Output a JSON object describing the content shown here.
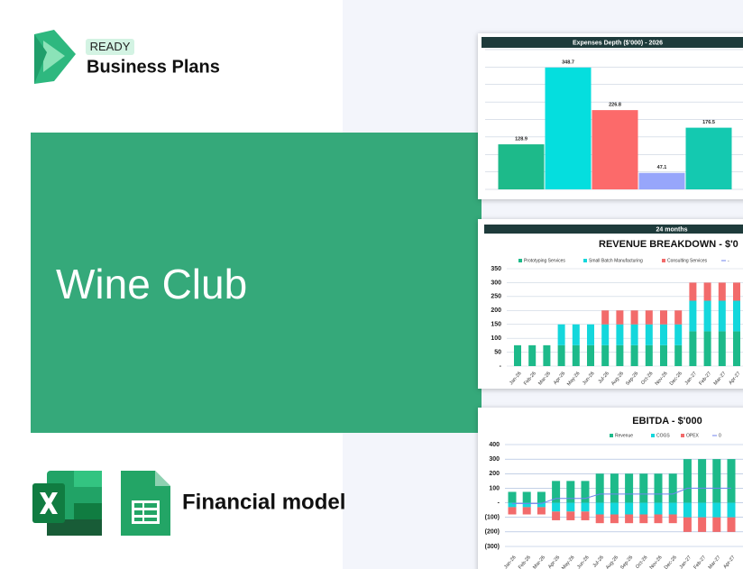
{
  "brand": {
    "tag": "READY",
    "name": "Business Plans"
  },
  "title": "Wine Club",
  "footer": "Financial model",
  "chart_data": [
    {
      "type": "bar",
      "title": "Expenses Depth ($'000) - 2026",
      "values": [
        128.9,
        348.7,
        226.8,
        47.1,
        176.5
      ],
      "colors": [
        "#1dba8a",
        "#05dede",
        "#fc6a6a",
        "#97a6fb",
        "#14c9b0"
      ],
      "ylim": [
        0,
        400
      ],
      "yticks": [
        0,
        50,
        100,
        150,
        200,
        250,
        300,
        350,
        400
      ],
      "grid": true
    },
    {
      "type": "stacked_bar",
      "header": "24 months",
      "title": "REVENUE BREAKDOWN - $'0",
      "categories": [
        "Jan-26",
        "Feb-26",
        "Mar-26",
        "Apr-26",
        "May-26",
        "Jun-26",
        "Jul-26",
        "Aug-26",
        "Sep-26",
        "Oct-26",
        "Nov-26",
        "Dec-26",
        "Jan-27",
        "Feb-27",
        "Mar-27",
        "Apr-27"
      ],
      "series": [
        {
          "name": "Prototyping Services",
          "color": "#1dba8a",
          "values": [
            75,
            75,
            75,
            75,
            75,
            75,
            75,
            75,
            75,
            75,
            75,
            75,
            125,
            125,
            125,
            125
          ]
        },
        {
          "name": "Small Batch Manufacturing",
          "color": "#14d7dc",
          "values": [
            null,
            null,
            null,
            75,
            75,
            75,
            75,
            75,
            75,
            75,
            75,
            75,
            110,
            110,
            110,
            110
          ]
        },
        {
          "name": "Consulting Services",
          "color": "#f26b6b",
          "values": [
            null,
            null,
            null,
            null,
            null,
            null,
            50,
            50,
            50,
            50,
            50,
            50,
            65,
            65,
            65,
            65
          ]
        },
        {
          "name": "-",
          "color": "#6f83ee",
          "type": "line",
          "values": [
            null,
            null,
            null,
            null,
            null,
            null,
            null,
            null,
            null,
            null,
            null,
            null,
            null,
            null,
            null,
            null
          ]
        }
      ],
      "ylim": [
        0,
        350
      ],
      "yticks": [
        {
          "value": 0,
          "label": "-"
        },
        50,
        100,
        150,
        200,
        250,
        300,
        350
      ],
      "grid": true
    },
    {
      "type": "stacked_bar",
      "title": "EBITDA - $'000",
      "categories": [
        "Jan-26",
        "Feb-26",
        "Mar-26",
        "Apr-26",
        "May-26",
        "Jun-26",
        "Jul-26",
        "Aug-26",
        "Sep-26",
        "Oct-26",
        "Nov-26",
        "Dec-26",
        "Jan-27",
        "Feb-27",
        "Mar-27",
        "Apr-27"
      ],
      "series": [
        {
          "name": "Revenue",
          "color": "#1dba8a",
          "values": [
            75,
            75,
            75,
            150,
            150,
            150,
            200,
            200,
            200,
            200,
            200,
            200,
            300,
            300,
            300,
            300
          ]
        },
        {
          "name": "COGS",
          "color": "#14d7dc",
          "values": [
            -30,
            -30,
            -30,
            -60,
            -60,
            -60,
            -80,
            -80,
            -80,
            -80,
            -80,
            -80,
            -100,
            -100,
            -100,
            -100
          ]
        },
        {
          "name": "OPEX",
          "color": "#f26b6b",
          "values": [
            -50,
            -50,
            -50,
            -60,
            -60,
            -60,
            -60,
            -60,
            -60,
            -60,
            -60,
            -60,
            -100,
            -100,
            -100,
            -100
          ]
        },
        {
          "name": "0",
          "color": "#6f83ee",
          "type": "line",
          "values": [
            -5,
            -5,
            -5,
            30,
            30,
            30,
            60,
            60,
            60,
            60,
            60,
            60,
            100,
            100,
            100,
            100
          ]
        }
      ],
      "ylim": [
        -300,
        400
      ],
      "yticks": [
        {
          "value": -300,
          "label": "(300)"
        },
        {
          "value": -200,
          "label": "(200)"
        },
        {
          "value": -100,
          "label": "(100)"
        },
        {
          "value": 0,
          "label": "-"
        },
        100,
        200,
        300,
        400
      ],
      "grid": true
    }
  ]
}
